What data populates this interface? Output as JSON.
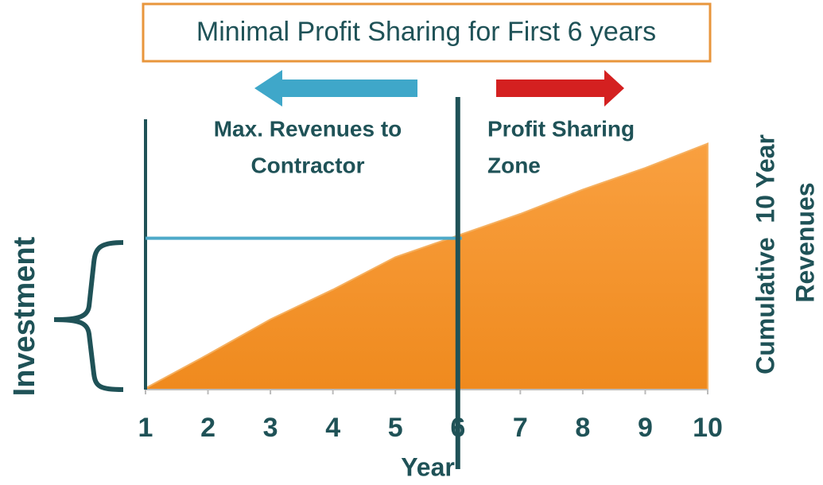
{
  "chart_data": {
    "type": "area",
    "title": "Minimal Profit Sharing for First 6 years",
    "x": [
      1,
      2,
      3,
      4,
      5,
      6,
      7,
      8,
      9,
      10
    ],
    "values": [
      0.5,
      13,
      26,
      37,
      49,
      57,
      65,
      74,
      82,
      91
    ],
    "color": "#f7962a",
    "xlim": [
      1,
      10
    ],
    "xticks": [
      1,
      2,
      3,
      4,
      5,
      6,
      7,
      8,
      9,
      10
    ],
    "ylim": [
      0,
      100
    ],
    "x_label": "Year",
    "y_label": "Investment",
    "y2_label": [
      "Cumulative  10 Year",
      "Revenues"
    ],
    "left_zone": [
      "Max. Revenues to",
      "Contractor"
    ],
    "right_zone": [
      "Profit Sharing",
      "Zone"
    ],
    "investment_level": 56,
    "divider_x": 6
  }
}
